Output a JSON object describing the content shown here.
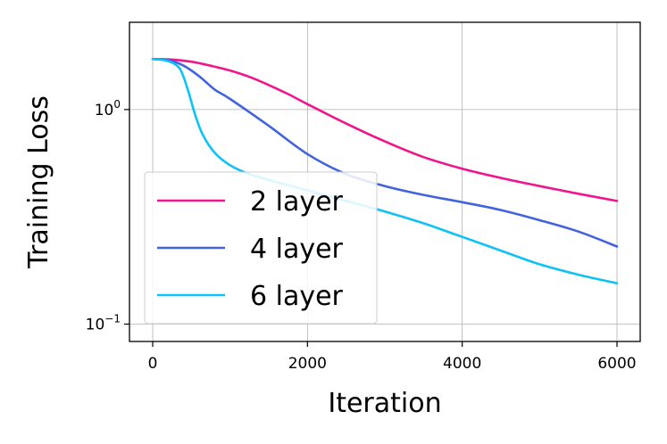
{
  "chart_data": {
    "type": "line",
    "xlabel": "Iteration",
    "ylabel": "Training Loss",
    "yscale": "log",
    "xlim": [
      -300,
      6300
    ],
    "ylim": [
      0.083,
      2.55
    ],
    "xticks": [
      {
        "value": 0,
        "label": "0"
      },
      {
        "value": 2000,
        "label": "2000"
      },
      {
        "value": 4000,
        "label": "4000"
      },
      {
        "value": 6000,
        "label": "6000"
      }
    ],
    "yticks": [
      {
        "value": 1.0,
        "base": "10",
        "exp": "0"
      },
      {
        "value": 0.1,
        "base": "10",
        "exp": "−1"
      }
    ],
    "grid": true,
    "legend_position": "lower-left",
    "series": [
      {
        "name": "2 layer",
        "color": "#f0158c",
        "x": [
          0,
          250,
          500,
          750,
          1000,
          1250,
          1500,
          1750,
          2000,
          2500,
          3000,
          3500,
          4000,
          4500,
          5000,
          5500,
          6000
        ],
        "y": [
          1.72,
          1.71,
          1.67,
          1.6,
          1.52,
          1.42,
          1.3,
          1.18,
          1.06,
          0.86,
          0.71,
          0.6,
          0.53,
          0.48,
          0.44,
          0.405,
          0.375
        ]
      },
      {
        "name": "4 layer",
        "color": "#4263dd",
        "x": [
          0,
          200,
          400,
          600,
          800,
          1000,
          1500,
          2000,
          2500,
          3000,
          3500,
          4000,
          4500,
          5000,
          5500,
          6000
        ],
        "y": [
          1.72,
          1.7,
          1.6,
          1.43,
          1.24,
          1.12,
          0.84,
          0.62,
          0.5,
          0.44,
          0.4,
          0.37,
          0.34,
          0.305,
          0.27,
          0.23
        ]
      },
      {
        "name": "6 layer",
        "color": "#0fc2f6",
        "x": [
          0,
          200,
          350,
          450,
          550,
          650,
          800,
          1000,
          1250,
          1500,
          2000,
          2500,
          3000,
          3500,
          4000,
          4500,
          5000,
          5500,
          6000
        ],
        "y": [
          1.72,
          1.68,
          1.55,
          1.25,
          0.94,
          0.76,
          0.63,
          0.55,
          0.5,
          0.47,
          0.42,
          0.375,
          0.335,
          0.295,
          0.255,
          0.22,
          0.19,
          0.17,
          0.155
        ]
      }
    ]
  }
}
